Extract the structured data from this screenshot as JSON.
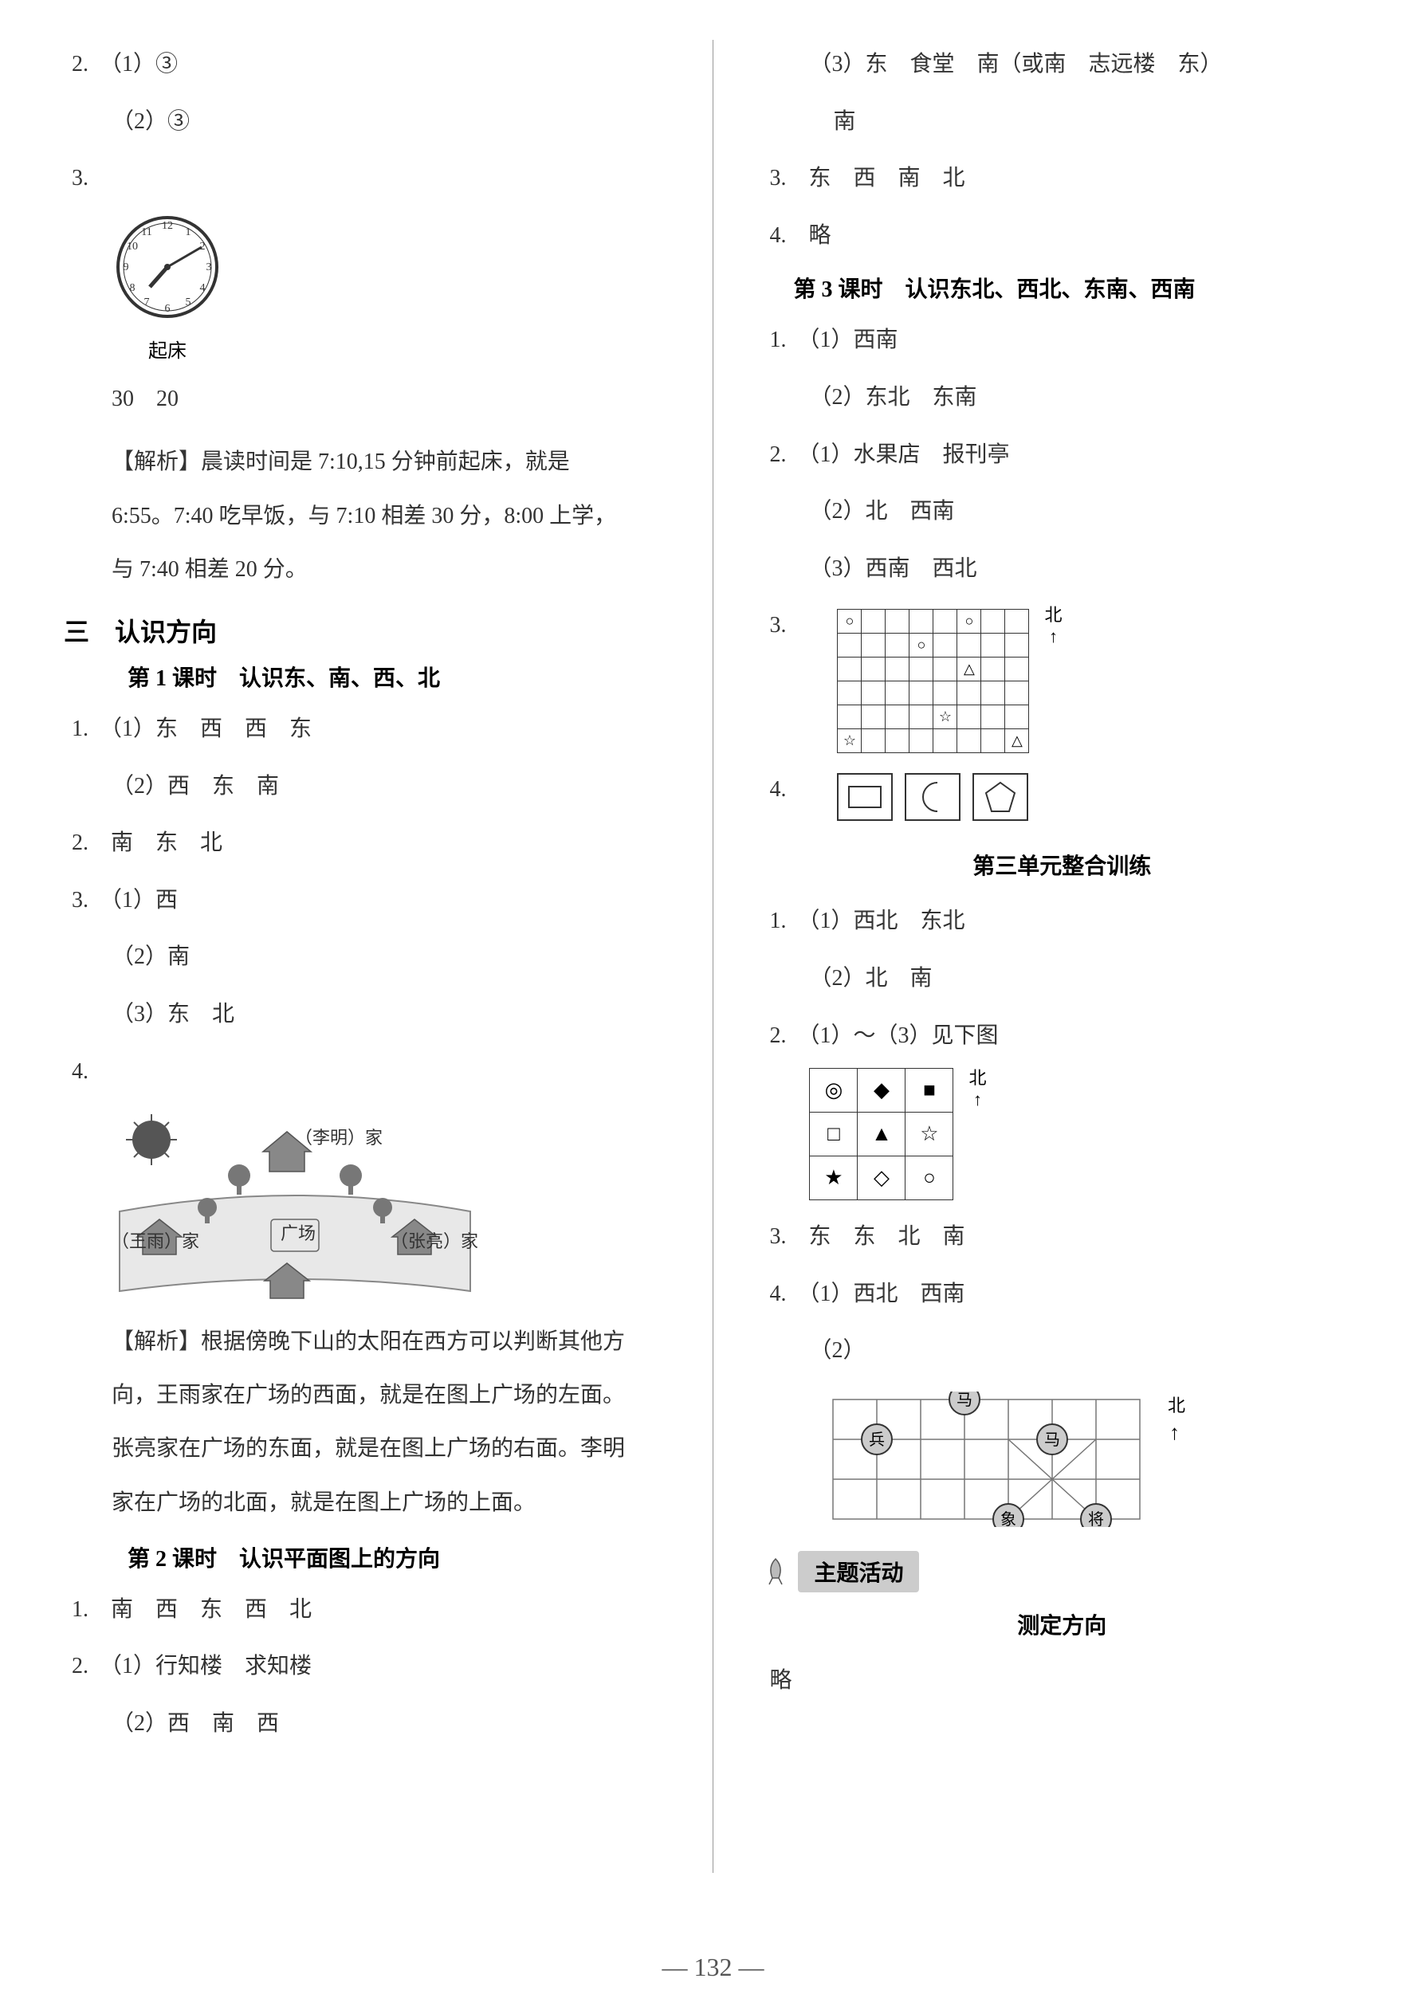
{
  "leftColumn": {
    "q2": {
      "num": "2.",
      "a1": "（1）③",
      "a2": "（2）③"
    },
    "q3": {
      "num": "3.",
      "clockLabel": "起床",
      "nums": "30　20",
      "explain": "【解析】晨读时间是 7:10,15 分钟前起床，就是 6:55。7:40 吃早饭，与 7:10 相差 30 分，8:00 上学，与 7:40 相差 20 分。"
    },
    "sectionNum": "三",
    "sectionTitle": "认识方向",
    "lesson1": {
      "title": "第 1 课时　认识东、南、西、北",
      "q1": {
        "num": "1.",
        "a1": "（1）东　西　西　东",
        "a2": "（2）西　东　南"
      },
      "q2": {
        "num": "2.",
        "text": "南　东　北"
      },
      "q3": {
        "num": "3.",
        "a1": "（1）西",
        "a2": "（2）南",
        "a3": "（3）东　北"
      },
      "q4": {
        "num": "4.",
        "labels": {
          "top": "（李明）家",
          "left": "（王雨）家",
          "center": "广场",
          "right": "（张亮）家"
        },
        "explain": "【解析】根据傍晚下山的太阳在西方可以判断其他方向，王雨家在广场的西面，就是在图上广场的左面。张亮家在广场的东面，就是在图上广场的右面。李明家在广场的北面，就是在图上广场的上面。"
      }
    },
    "lesson2": {
      "title": "第 2 课时　认识平面图上的方向",
      "q1": {
        "num": "1.",
        "text": "南　西　东　西　北"
      },
      "q2": {
        "num": "2.",
        "a1": "（1）行知楼　求知楼",
        "a2": "（2）西　南　西"
      }
    }
  },
  "rightColumn": {
    "cont": {
      "a3": "（3）东　食堂　南（或南　志远楼　东）",
      "a3b": "南",
      "q3": {
        "num": "3.",
        "text": "东　西　南　北"
      },
      "q4": {
        "num": "4.",
        "text": "略"
      }
    },
    "lesson3": {
      "title": "第 3 课时　认识东北、西北、东南、西南",
      "q1": {
        "num": "1.",
        "a1": "（1）西南",
        "a2": "（2）东北　东南"
      },
      "q2": {
        "num": "2.",
        "a1": "（1）水果店　报刊亭",
        "a2": "（2）北　西南",
        "a3": "（3）西南　西北"
      },
      "q3": {
        "num": "3.",
        "north": "北"
      },
      "q4": {
        "num": "4."
      }
    },
    "unitTitle": "第三单元整合训练",
    "unit": {
      "q1": {
        "num": "1.",
        "a1": "（1）西北　东北",
        "a2": "（2）北　南"
      },
      "q2": {
        "num": "2.",
        "text": "（1）～（3）见下图",
        "north": "北",
        "symbols": [
          [
            "◎",
            "◆",
            "■"
          ],
          [
            "□",
            "▲",
            "☆"
          ],
          [
            "★",
            "◇",
            "○"
          ]
        ]
      },
      "q3": {
        "num": "3.",
        "text": "东　东　北　南"
      },
      "q4": {
        "num": "4.",
        "a1": "（1）西北　西南",
        "a2": "（2）",
        "north": "北",
        "pieces": [
          "马",
          "马",
          "兵",
          "象",
          "将"
        ]
      }
    },
    "topicBanner": "主题活动",
    "subHeading": "测定方向",
    "final": "略"
  },
  "pageNum": "132",
  "colors": {
    "text": "#333333",
    "border": "#333333",
    "divider": "#999999",
    "banner": "#cccccc"
  },
  "grid8": {
    "cols": 8,
    "rows": 8,
    "marks": [
      {
        "r": 0,
        "c": 0,
        "s": "○"
      },
      {
        "r": 0,
        "c": 5,
        "s": "○"
      },
      {
        "r": 1,
        "c": 3,
        "s": "○"
      },
      {
        "r": 2,
        "c": 5,
        "s": "△"
      },
      {
        "r": 4,
        "c": 4,
        "s": "☆"
      },
      {
        "r": 5,
        "c": 0,
        "s": "☆"
      },
      {
        "r": 5,
        "c": 7,
        "s": "△"
      }
    ]
  }
}
